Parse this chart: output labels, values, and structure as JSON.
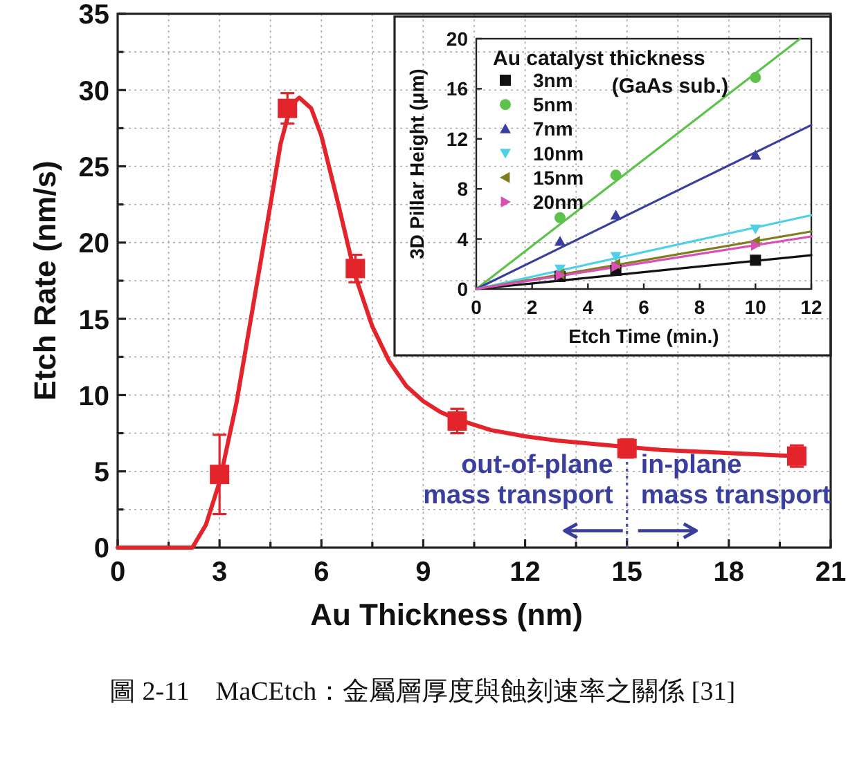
{
  "chart_data": [
    {
      "type": "scatter",
      "xlabel": "Au Thickness (nm)",
      "ylabel": "Etch Rate (nm/s)",
      "xlim": [
        0,
        21
      ],
      "ylim": [
        0,
        35
      ],
      "xticks": [
        0,
        {
          "value": 1.5,
          "label": null
        },
        3,
        {
          "value": 4.5,
          "label": null
        },
        6,
        {
          "value": 7.5,
          "label": null
        },
        9,
        {
          "value": 10.5,
          "label": null
        },
        12,
        {
          "value": 13.5,
          "label": null
        },
        15,
        {
          "value": 16.5,
          "label": null
        },
        18,
        {
          "value": 19.5,
          "label": null
        },
        21
      ],
      "yticks": [
        0,
        {
          "value": 2.5,
          "label": null
        },
        5,
        {
          "value": 7.5,
          "label": null
        },
        10,
        {
          "value": 12.5,
          "label": null
        },
        15,
        {
          "value": 17.5,
          "label": null
        },
        20,
        {
          "value": 22.5,
          "label": null
        },
        25,
        {
          "value": 27.5,
          "label": null
        },
        30,
        {
          "value": 32.5,
          "label": null
        },
        35
      ],
      "grid": true,
      "series": [
        {
          "color": "#e3242b",
          "marker": "square",
          "x": [
            3,
            5,
            7,
            10,
            15,
            20
          ],
          "values": [
            4.8,
            28.8,
            18.3,
            8.3,
            6.5,
            6.0
          ],
          "errors": [
            [
              2.2,
              7.4
            ],
            1.0,
            0.9,
            0.8,
            0.6,
            0.7
          ]
        },
        {
          "type": "line",
          "color": "#e3242b",
          "line_style": "solid",
          "x": [
            0,
            2.2,
            2.6,
            3,
            3.5,
            4,
            4.5,
            4.8,
            5.1,
            5.35,
            5.7,
            6,
            6.5,
            7,
            7.5,
            8,
            8.5,
            9,
            9.5,
            10,
            11,
            12,
            13,
            14,
            15,
            16,
            17,
            18,
            19,
            20
          ],
          "values": [
            0,
            0,
            1.5,
            4.3,
            9.5,
            16,
            22.5,
            26.5,
            29,
            29.5,
            28.8,
            27,
            22.5,
            17.8,
            14.5,
            12.2,
            10.6,
            9.6,
            8.9,
            8.4,
            7.7,
            7.3,
            7,
            6.8,
            6.6,
            6.4,
            6.3,
            6.2,
            6.1,
            6.0
          ]
        }
      ],
      "ref_lines": [
        {
          "axis": "x",
          "value": 15,
          "color": "#4a4fa8",
          "line_style": "dotted"
        }
      ],
      "annotations": [
        "out-of-plane\nmass transport",
        "in-plane\nmass transport",
        "圖 2-11　MaCEtch：金屬層厚度與蝕刻速率之關係 [31]"
      ]
    },
    {
      "type": "scatter",
      "xlabel": "Etch Time (min.)",
      "ylabel": "3D Pillar Height (μm)",
      "legend_title": "Au catalyst thickness",
      "legend": "top left",
      "xlim": [
        0,
        12
      ],
      "ylim": [
        0,
        20
      ],
      "xticks": [
        0,
        2,
        4,
        6,
        8,
        10,
        12
      ],
      "yticks": [
        0,
        4,
        8,
        12,
        16,
        20
      ],
      "annotations": [
        "(GaAs sub.)"
      ],
      "series": [
        {
          "name": "3nm",
          "color": "#111111",
          "marker": "square",
          "x": [
            3,
            5,
            10
          ],
          "values": [
            1.0,
            1.5,
            2.3
          ]
        },
        {
          "name": "5nm",
          "color": "#5cc24a",
          "marker": "circle",
          "x": [
            3,
            5,
            10
          ],
          "values": [
            5.7,
            9.1,
            16.9
          ]
        },
        {
          "name": "7nm",
          "color": "#3a3f9e",
          "marker": "triangle",
          "x": [
            3,
            5,
            10
          ],
          "values": [
            3.8,
            5.9,
            10.7
          ]
        },
        {
          "name": "10nm",
          "color": "#4fd0e6",
          "marker": "triangle-down",
          "x": [
            3,
            5,
            10
          ],
          "values": [
            1.6,
            2.6,
            4.8
          ]
        },
        {
          "name": "15nm",
          "color": "#7d7d1e",
          "marker": "triangle-left",
          "x": [
            3,
            5,
            10
          ],
          "values": [
            1.2,
            2.0,
            3.8
          ]
        },
        {
          "name": "20nm",
          "color": "#d94fb5",
          "marker": "triangle-right",
          "x": [
            3,
            5,
            10
          ],
          "values": [
            1.1,
            1.8,
            3.5
          ]
        },
        {
          "type": "line",
          "color": "#111111",
          "x": [
            0,
            12
          ],
          "values": [
            0,
            2.7
          ]
        },
        {
          "type": "line",
          "color": "#5cc24a",
          "x": [
            0,
            11.6
          ],
          "values": [
            0,
            20
          ]
        },
        {
          "type": "line",
          "color": "#3a3f9e",
          "x": [
            0,
            12
          ],
          "values": [
            0,
            13.1
          ]
        },
        {
          "type": "line",
          "color": "#4fd0e6",
          "x": [
            0,
            12
          ],
          "values": [
            0,
            5.9
          ]
        },
        {
          "type": "line",
          "color": "#7d7d1e",
          "x": [
            0,
            12
          ],
          "values": [
            0,
            4.6
          ]
        },
        {
          "type": "line",
          "color": "#d94fb5",
          "x": [
            0,
            12
          ],
          "values": [
            0,
            4.2
          ]
        }
      ]
    }
  ]
}
